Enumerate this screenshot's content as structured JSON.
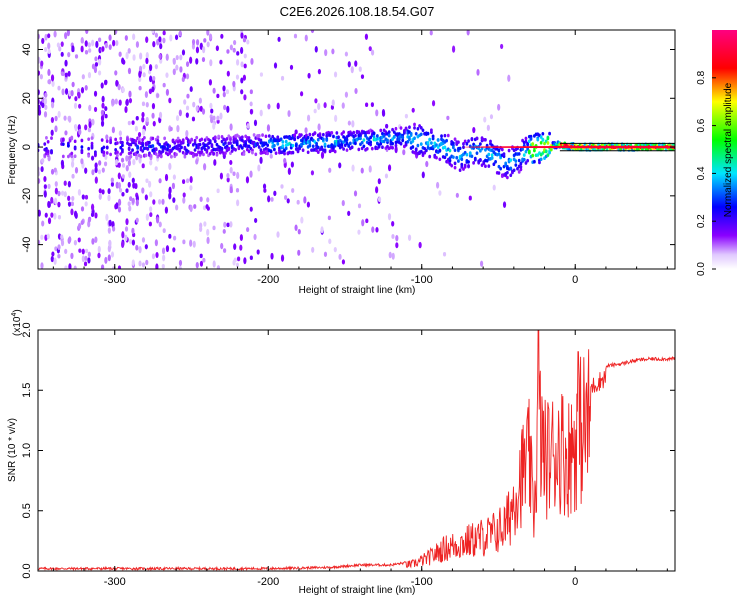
{
  "figure_title": "C2E6.2026.108.18.54.G07",
  "chart_data": [
    {
      "type": "heatmap",
      "title": "C2E6.2026.108.18.54.G07",
      "xlabel": "Height of straight line (km)",
      "ylabel": "Frequency (Hz)",
      "xlim": [
        -350,
        65
      ],
      "ylim": [
        -50,
        48
      ],
      "x_ticks": [
        -300,
        -200,
        -100,
        0
      ],
      "x_tick_labels": [
        "-300",
        "-200",
        "-100",
        "0"
      ],
      "y_ticks": [
        -40,
        -20,
        0,
        20,
        40
      ],
      "y_tick_labels": [
        "-40",
        "-20",
        "0",
        "20",
        "40"
      ],
      "colorbar": {
        "label": "Normalized spectral amplitude",
        "range": [
          0,
          1
        ],
        "ticks": [
          0.0,
          0.2,
          0.4,
          0.6,
          0.8
        ],
        "tick_labels": [
          "0.0",
          "0.2",
          "0.4",
          "0.6",
          "0.8"
        ],
        "colormap": [
          "#ffffff",
          "#8a00ff",
          "#0000ff",
          "#00e5ff",
          "#00ff00",
          "#ffff00",
          "#ff0000",
          "#ff0080"
        ]
      },
      "ridge_center_hz": {
        "x": [
          -280,
          -250,
          -220,
          -200,
          -160,
          -130,
          -110,
          -95,
          -85,
          -75,
          -65,
          -55,
          -45,
          -38,
          -30,
          -20,
          -10,
          0,
          65
        ],
        "y": [
          0,
          0,
          1,
          1,
          2,
          3,
          4,
          2,
          0,
          -4,
          -1,
          -3,
          -7,
          -5,
          -1,
          0,
          1,
          0,
          0
        ]
      }
    },
    {
      "type": "line",
      "title": "",
      "xlabel": "Height of straight line (km)",
      "ylabel": "SNR (10 * v/v)",
      "y_multiplier": "(x10^4)",
      "y_multiplier_base": "(x10",
      "y_multiplier_exp": "4",
      "xlim": [
        -350,
        65
      ],
      "ylim": [
        0,
        2.0
      ],
      "x_ticks": [
        -300,
        -200,
        -100,
        0
      ],
      "x_tick_labels": [
        "-300",
        "-200",
        "-100",
        "0"
      ],
      "y_ticks": [
        0,
        0.5,
        1.0,
        1.5,
        2.0
      ],
      "y_tick_labels": [
        "0.0",
        "0.5",
        "1.0",
        "1.5",
        "2.0"
      ],
      "line_color": "#ee2222",
      "series": [
        {
          "name": "SNR",
          "x": [
            -350,
            -300,
            -250,
            -200,
            -160,
            -140,
            -120,
            -105,
            -95,
            -85,
            -75,
            -65,
            -55,
            -45,
            -38,
            -33,
            -30,
            -27,
            -24,
            -20,
            -15,
            -10,
            -5,
            0,
            5,
            10,
            15,
            20,
            30,
            40,
            50,
            65
          ],
          "y": [
            0.02,
            0.02,
            0.02,
            0.02,
            0.03,
            0.05,
            0.05,
            0.08,
            0.15,
            0.25,
            0.3,
            0.35,
            0.4,
            0.5,
            0.9,
            1.1,
            1.2,
            0.6,
            1.6,
            1.2,
            1.25,
            1.35,
            1.2,
            1.4,
            1.55,
            1.6,
            1.65,
            1.7,
            1.72,
            1.75,
            1.76,
            1.76
          ]
        }
      ]
    }
  ]
}
